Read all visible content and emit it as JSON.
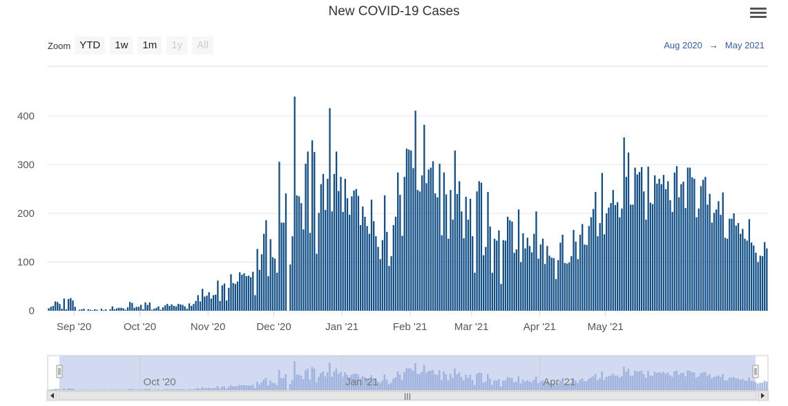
{
  "title": "New COVID-19 Cases",
  "menu_icon": "hamburger-menu-icon",
  "zoom": {
    "label": "Zoom",
    "buttons": [
      {
        "label": "YTD",
        "enabled": true
      },
      {
        "label": "1w",
        "enabled": true
      },
      {
        "label": "1m",
        "enabled": true
      },
      {
        "label": "1y",
        "enabled": false
      },
      {
        "label": "All",
        "enabled": false
      }
    ]
  },
  "range": {
    "from": "Aug 2020",
    "arrow": "→",
    "to": "May 2021"
  },
  "colors": {
    "bar": "#0e4d87",
    "navigator_fill": "#c9d4ee",
    "navigator_bars": "#8fa6d6",
    "grid": "#e6e6e6"
  },
  "navigator": {
    "tick_labels": [
      "Oct '20",
      "Jan '21",
      "Apr '21"
    ],
    "scrollbar_grip": "|||"
  },
  "chart_data": {
    "type": "bar",
    "title": "New COVID-19 Cases",
    "x_start": "2020-08-20",
    "x_ticks": [
      "Sep '20",
      "Oct '20",
      "Nov '20",
      "Dec '20",
      "Jan '21",
      "Feb '21",
      "Mar '21",
      "Apr '21",
      "May '21"
    ],
    "y_ticks": [
      "0",
      "100",
      "200",
      "300",
      "400"
    ],
    "ylim": [
      0,
      440
    ],
    "grid": true,
    "values": [
      5,
      8,
      10,
      19,
      18,
      14,
      4,
      25,
      3,
      24,
      26,
      21,
      8,
      0,
      2,
      3,
      4,
      0,
      3,
      2,
      1,
      3,
      2,
      0,
      4,
      1,
      3,
      0,
      3,
      9,
      3,
      5,
      6,
      6,
      5,
      2,
      7,
      18,
      16,
      6,
      8,
      8,
      12,
      3,
      17,
      12,
      17,
      2,
      4,
      6,
      9,
      2,
      7,
      11,
      14,
      10,
      13,
      10,
      9,
      14,
      13,
      12,
      9,
      4,
      15,
      10,
      14,
      20,
      32,
      19,
      45,
      29,
      31,
      38,
      25,
      32,
      33,
      62,
      20,
      52,
      56,
      21,
      47,
      75,
      57,
      55,
      60,
      79,
      74,
      77,
      71,
      72,
      69,
      80,
      32,
      127,
      84,
      116,
      158,
      186,
      71,
      147,
      110,
      107,
      78,
      306,
      181,
      181,
      241,
      0,
      95,
      153,
      440,
      237,
      235,
      221,
      167,
      302,
      327,
      160,
      350,
      326,
      117,
      201,
      260,
      281,
      207,
      271,
      416,
      204,
      281,
      327,
      246,
      275,
      203,
      271,
      231,
      197,
      235,
      247,
      250,
      236,
      176,
      214,
      193,
      174,
      158,
      228,
      184,
      153,
      131,
      106,
      145,
      237,
      162,
      92,
      112,
      176,
      193,
      284,
      238,
      154,
      275,
      333,
      331,
      329,
      293,
      411,
      248,
      245,
      278,
      382,
      262,
      290,
      294,
      307,
      241,
      233,
      302,
      155,
      284,
      239,
      148,
      248,
      187,
      329,
      240,
      266,
      204,
      149,
      234,
      187,
      230,
      153,
      78,
      245,
      266,
      263,
      114,
      131,
      244,
      173,
      78,
      148,
      144,
      165,
      55,
      145,
      144,
      193,
      186,
      183,
      119,
      126,
      208,
      100,
      159,
      128,
      150,
      133,
      120,
      158,
      204,
      107,
      136,
      148,
      96,
      133,
      113,
      109,
      108,
      65,
      104,
      140,
      156,
      98,
      97,
      99,
      112,
      166,
      142,
      106,
      156,
      178,
      136,
      135,
      174,
      192,
      209,
      244,
      153,
      180,
      283,
      157,
      200,
      212,
      221,
      248,
      217,
      223,
      192,
      210,
      356,
      275,
      325,
      218,
      218,
      294,
      280,
      285,
      295,
      245,
      187,
      296,
      222,
      219,
      278,
      261,
      271,
      260,
      279,
      250,
      266,
      227,
      203,
      284,
      297,
      233,
      260,
      265,
      211,
      294,
      294,
      274,
      271,
      192,
      210,
      256,
      269,
      275,
      218,
      240,
      181,
      201,
      208,
      225,
      197,
      243,
      150,
      148,
      189,
      189,
      200,
      175,
      180,
      158,
      168,
      148,
      144,
      188,
      140,
      134,
      119,
      100,
      113,
      112,
      141,
      128
    ]
  }
}
